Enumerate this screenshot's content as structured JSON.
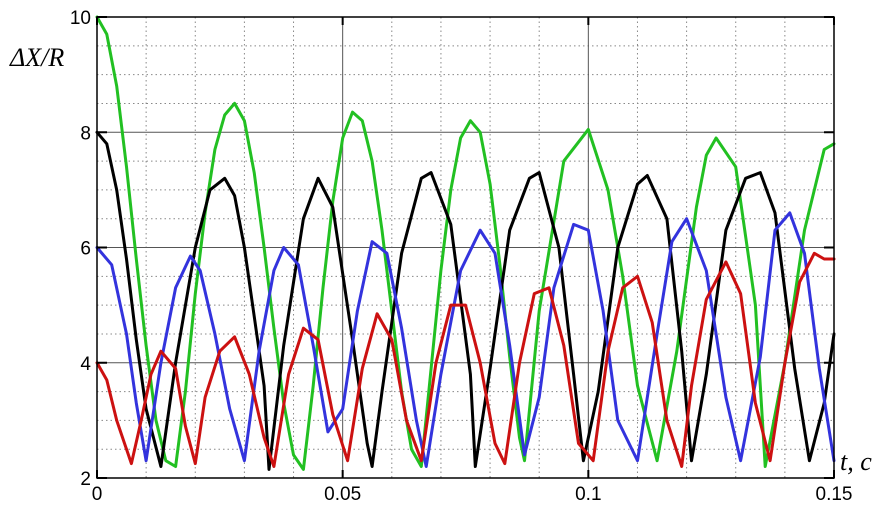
{
  "chart_data": {
    "type": "line",
    "title": "",
    "ylabel": "ΔX/R",
    "xlabel": "t, c",
    "xlim": [
      0,
      0.15
    ],
    "ylim": [
      2,
      10
    ],
    "x_ticks": [
      0,
      0.05,
      0.1,
      0.15
    ],
    "x_tick_labels": [
      "0",
      "0.05",
      "0.1",
      "0.15"
    ],
    "y_ticks": [
      2,
      4,
      6,
      8,
      10
    ],
    "y_tick_labels": [
      "2",
      "4",
      "6",
      "8",
      "10"
    ],
    "grid": "major solid, minor dotted",
    "legend": "none",
    "series": [
      {
        "color": "#22c022",
        "x": [
          0,
          0.002,
          0.004,
          0.006,
          0.008,
          0.01,
          0.012,
          0.014,
          0.016,
          0.018,
          0.02,
          0.022,
          0.024,
          0.026,
          0.028,
          0.03,
          0.032,
          0.034,
          0.036,
          0.038,
          0.04,
          0.042,
          0.044,
          0.046,
          0.048,
          0.05,
          0.052,
          0.054,
          0.056,
          0.058,
          0.06,
          0.062,
          0.064,
          0.066,
          0.068,
          0.07,
          0.072,
          0.074,
          0.076,
          0.078,
          0.08,
          0.082,
          0.084,
          0.086,
          0.087,
          0.09,
          0.095,
          0.1,
          0.104,
          0.107,
          0.11,
          0.114,
          0.118,
          0.122,
          0.124,
          0.126,
          0.13,
          0.134,
          0.136,
          0.14,
          0.144,
          0.148,
          0.15
        ],
        "y": [
          10.0,
          9.7,
          8.8,
          7.4,
          5.8,
          4.3,
          3.0,
          2.3,
          2.2,
          3.5,
          5.2,
          6.6,
          7.7,
          8.3,
          8.5,
          8.2,
          7.3,
          6.0,
          4.6,
          3.3,
          2.4,
          2.15,
          3.6,
          5.3,
          6.8,
          7.9,
          8.35,
          8.2,
          7.5,
          6.3,
          4.9,
          3.5,
          2.5,
          2.2,
          3.9,
          5.6,
          7.0,
          7.9,
          8.2,
          8.0,
          7.1,
          5.7,
          4.1,
          2.7,
          2.3,
          4.9,
          7.5,
          8.05,
          7.0,
          5.5,
          3.6,
          2.3,
          4.2,
          6.7,
          7.6,
          7.9,
          7.4,
          5.0,
          2.2,
          4.0,
          6.3,
          7.7,
          7.8
        ]
      },
      {
        "color": "#000000",
        "x": [
          0,
          0.002,
          0.004,
          0.006,
          0.008,
          0.01,
          0.013,
          0.016,
          0.02,
          0.023,
          0.026,
          0.028,
          0.03,
          0.034,
          0.035,
          0.038,
          0.042,
          0.045,
          0.048,
          0.052,
          0.055,
          0.056,
          0.058,
          0.062,
          0.066,
          0.068,
          0.072,
          0.076,
          0.077,
          0.08,
          0.084,
          0.088,
          0.09,
          0.094,
          0.097,
          0.099,
          0.102,
          0.106,
          0.11,
          0.112,
          0.116,
          0.119,
          0.121,
          0.124,
          0.128,
          0.132,
          0.135,
          0.138,
          0.142,
          0.145,
          0.148,
          0.15
        ],
        "y": [
          8.0,
          7.8,
          7.0,
          5.8,
          4.4,
          3.2,
          2.2,
          4.0,
          6.0,
          7.0,
          7.2,
          6.9,
          6.0,
          3.6,
          2.15,
          4.3,
          6.5,
          7.2,
          6.7,
          4.4,
          2.6,
          2.2,
          3.5,
          5.9,
          7.2,
          7.3,
          6.4,
          3.8,
          2.2,
          3.9,
          6.3,
          7.2,
          7.3,
          6.0,
          3.8,
          2.3,
          3.5,
          6.0,
          7.1,
          7.25,
          6.5,
          4.2,
          2.3,
          3.8,
          6.3,
          7.2,
          7.3,
          6.6,
          3.9,
          2.3,
          3.3,
          4.5
        ]
      },
      {
        "color": "#3333dd",
        "x": [
          0,
          0.003,
          0.006,
          0.008,
          0.01,
          0.013,
          0.016,
          0.019,
          0.021,
          0.024,
          0.027,
          0.03,
          0.033,
          0.036,
          0.038,
          0.041,
          0.044,
          0.047,
          0.05,
          0.053,
          0.056,
          0.059,
          0.062,
          0.065,
          0.067,
          0.07,
          0.074,
          0.078,
          0.081,
          0.084,
          0.087,
          0.09,
          0.093,
          0.097,
          0.1,
          0.103,
          0.106,
          0.11,
          0.114,
          0.117,
          0.12,
          0.124,
          0.128,
          0.131,
          0.135,
          0.138,
          0.141,
          0.144,
          0.147,
          0.15
        ],
        "y": [
          6.0,
          5.7,
          4.5,
          3.3,
          2.3,
          4.0,
          5.3,
          5.85,
          5.6,
          4.5,
          3.2,
          2.3,
          4.2,
          5.6,
          6.0,
          5.7,
          4.3,
          2.8,
          3.2,
          4.9,
          6.1,
          5.9,
          4.6,
          3.0,
          2.2,
          3.8,
          5.6,
          6.3,
          5.9,
          4.3,
          2.4,
          3.4,
          5.3,
          6.4,
          6.3,
          4.9,
          3.0,
          2.3,
          4.5,
          6.1,
          6.5,
          5.6,
          3.4,
          2.3,
          4.1,
          6.3,
          6.6,
          5.9,
          3.9,
          2.3
        ]
      },
      {
        "color": "#cc1111",
        "x": [
          0,
          0.002,
          0.004,
          0.007,
          0.009,
          0.011,
          0.013,
          0.016,
          0.018,
          0.02,
          0.022,
          0.025,
          0.028,
          0.031,
          0.034,
          0.036,
          0.039,
          0.042,
          0.045,
          0.048,
          0.051,
          0.054,
          0.057,
          0.06,
          0.063,
          0.066,
          0.069,
          0.072,
          0.075,
          0.078,
          0.081,
          0.083,
          0.086,
          0.089,
          0.092,
          0.095,
          0.098,
          0.101,
          0.104,
          0.107,
          0.11,
          0.113,
          0.116,
          0.119,
          0.121,
          0.124,
          0.128,
          0.131,
          0.134,
          0.137,
          0.14,
          0.143,
          0.146,
          0.148,
          0.15
        ],
        "y": [
          4.0,
          3.7,
          3.0,
          2.25,
          3.0,
          3.8,
          4.2,
          3.9,
          2.9,
          2.25,
          3.4,
          4.2,
          4.45,
          3.8,
          2.7,
          2.2,
          3.8,
          4.6,
          4.4,
          3.1,
          2.3,
          3.9,
          4.85,
          4.4,
          3.0,
          2.3,
          4.0,
          5.0,
          5.0,
          4.0,
          2.6,
          2.25,
          4.0,
          5.2,
          5.3,
          4.3,
          2.6,
          2.3,
          4.2,
          5.3,
          5.5,
          4.7,
          3.0,
          2.2,
          3.6,
          5.1,
          5.75,
          5.2,
          3.3,
          2.3,
          4.0,
          5.4,
          5.9,
          5.8,
          5.8
        ]
      }
    ]
  }
}
